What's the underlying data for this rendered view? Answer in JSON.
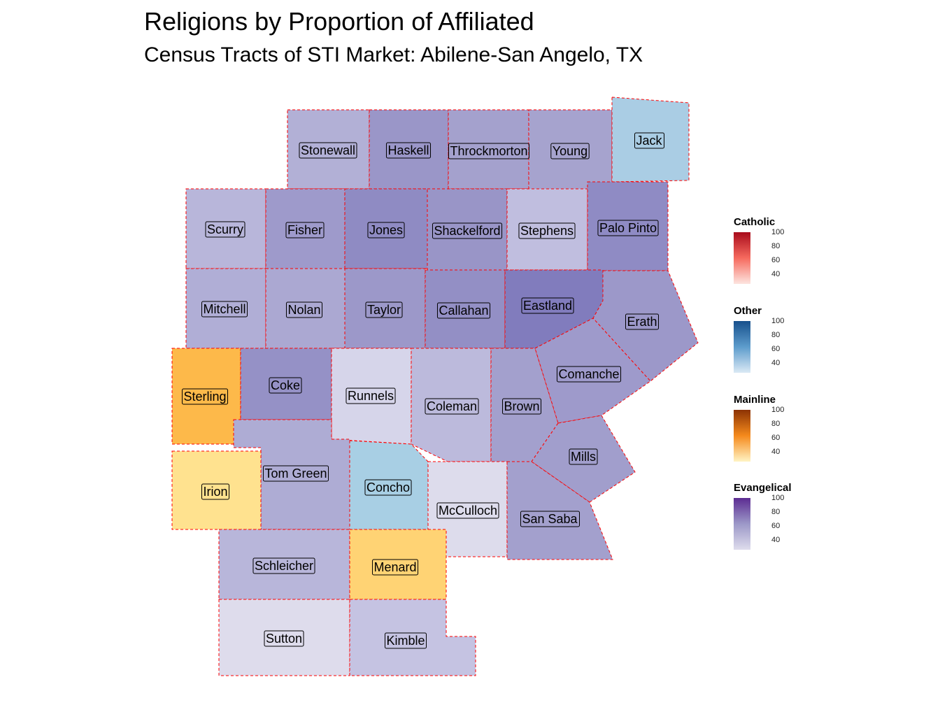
{
  "title": "Religions by Proportion of Affiliated",
  "subtitle": "Census Tracts of STI Market: Abilene-San Angelo, TX",
  "colors": {
    "evangelical_low": "#dedcec",
    "evangelical_mid": "#9c98c8",
    "evangelical_high": "#5c2c92",
    "other_low": "#dbe9f5",
    "other_mid": "#a8cce4",
    "other_high": "#17508c",
    "mainline_low": "#fff4c4",
    "mainline_mid": "#fdc060",
    "mainline_high": "#8c3304",
    "catholic_low": "#fde5e0",
    "catholic_mid": "#f66a5e",
    "catholic_high": "#a90c1c",
    "county_border": "#ff0000"
  },
  "counties": [
    {
      "name": "Stonewall",
      "religion": "Evangelical"
    },
    {
      "name": "Haskell",
      "religion": "Evangelical"
    },
    {
      "name": "Throckmorton",
      "religion": "Evangelical"
    },
    {
      "name": "Young",
      "religion": "Evangelical"
    },
    {
      "name": "Jack",
      "religion": "Other"
    },
    {
      "name": "Scurry",
      "religion": "Evangelical"
    },
    {
      "name": "Fisher",
      "religion": "Evangelical"
    },
    {
      "name": "Jones",
      "religion": "Evangelical"
    },
    {
      "name": "Shackelford",
      "religion": "Evangelical"
    },
    {
      "name": "Stephens",
      "religion": "Evangelical"
    },
    {
      "name": "Palo Pinto",
      "religion": "Evangelical"
    },
    {
      "name": "Mitchell",
      "religion": "Evangelical"
    },
    {
      "name": "Nolan",
      "religion": "Evangelical"
    },
    {
      "name": "Taylor",
      "religion": "Evangelical"
    },
    {
      "name": "Callahan",
      "religion": "Evangelical"
    },
    {
      "name": "Eastland",
      "religion": "Evangelical"
    },
    {
      "name": "Erath",
      "religion": "Evangelical"
    },
    {
      "name": "Sterling",
      "religion": "Mainline"
    },
    {
      "name": "Coke",
      "religion": "Evangelical"
    },
    {
      "name": "Runnels",
      "religion": "Evangelical"
    },
    {
      "name": "Coleman",
      "religion": "Evangelical"
    },
    {
      "name": "Brown",
      "religion": "Evangelical"
    },
    {
      "name": "Comanche",
      "religion": "Evangelical"
    },
    {
      "name": "Mills",
      "religion": "Evangelical"
    },
    {
      "name": "Tom Green",
      "religion": "Evangelical"
    },
    {
      "name": "Irion",
      "religion": "Mainline"
    },
    {
      "name": "Concho",
      "religion": "Other"
    },
    {
      "name": "McCulloch",
      "religion": "Evangelical"
    },
    {
      "name": "San Saba",
      "religion": "Evangelical"
    },
    {
      "name": "Schleicher",
      "religion": "Evangelical"
    },
    {
      "name": "Menard",
      "religion": "Mainline"
    },
    {
      "name": "Sutton",
      "religion": "Evangelical"
    },
    {
      "name": "Kimble",
      "religion": "Evangelical"
    }
  ],
  "legends": [
    {
      "title": "Catholic",
      "ticks": [
        "100",
        "80",
        "60",
        "40"
      ]
    },
    {
      "title": "Other",
      "ticks": [
        "100",
        "80",
        "60",
        "40"
      ]
    },
    {
      "title": "Mainline",
      "ticks": [
        "100",
        "80",
        "60",
        "40"
      ]
    },
    {
      "title": "Evangelical",
      "ticks": [
        "100",
        "80",
        "60",
        "40"
      ]
    }
  ]
}
